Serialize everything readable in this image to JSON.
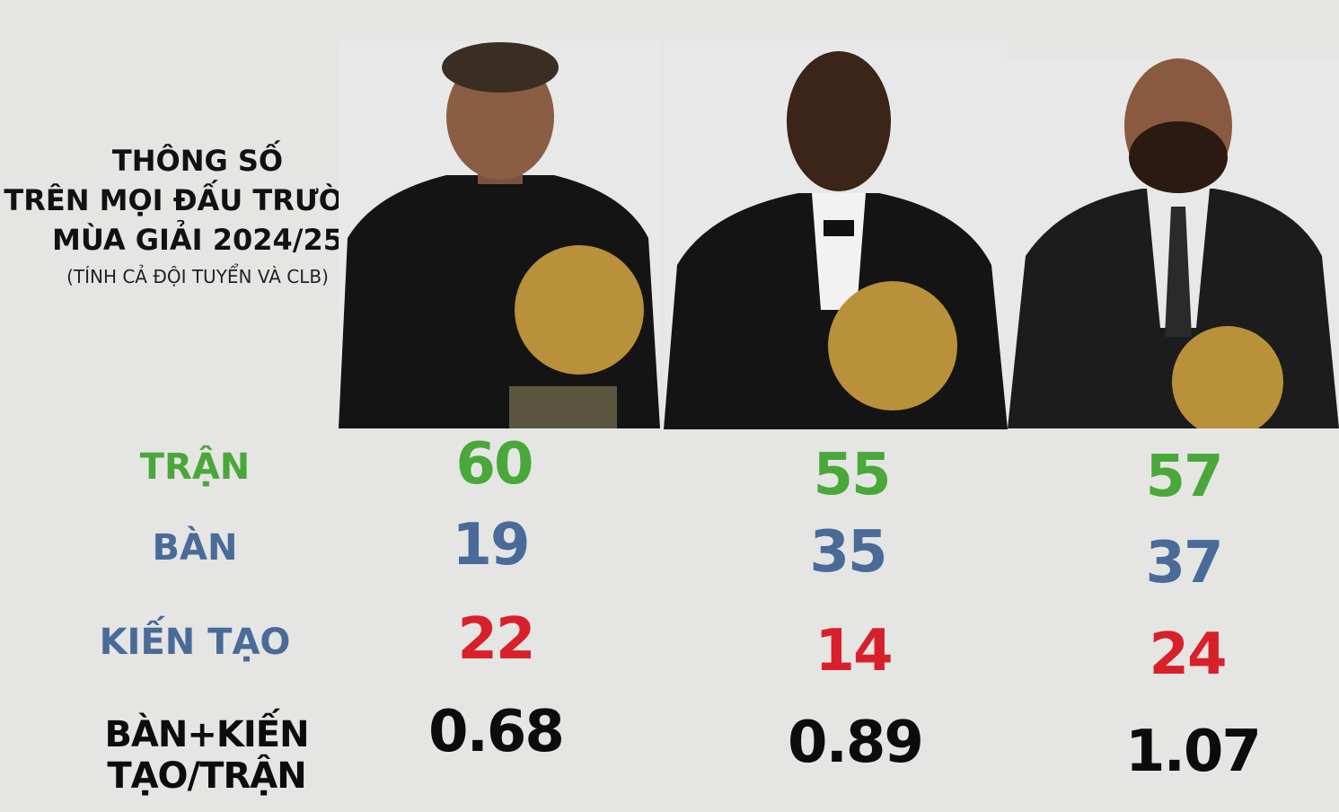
{
  "title": {
    "line1": "THÔNG SỐ",
    "line2": "TRÊN MỌI ĐẤU TRƯỜNG",
    "line3": "MÙA GIẢI 2024/25",
    "subtitle": "(TÍNH CẢ ĐỘI TUYỂN VÀ CLB)"
  },
  "labels": {
    "matches": "TRẬN",
    "goals": "BÀN",
    "assists": "KIẾN TẠO",
    "ratio": "BÀN+KIẾN TẠO/TRẬN"
  },
  "colors": {
    "matches": "#4aa83a",
    "goals": "#4a6b98",
    "assists": "#d8202a",
    "ratio": "#0c0c0c",
    "trophy": "#b8913a"
  },
  "players": [
    {
      "matches": "60",
      "goals": "19",
      "assists": "22",
      "ratio": "0.68"
    },
    {
      "matches": "55",
      "goals": "35",
      "assists": "14",
      "ratio": "0.89"
    },
    {
      "matches": "57",
      "goals": "37",
      "assists": "24",
      "ratio": "1.07"
    }
  ]
}
